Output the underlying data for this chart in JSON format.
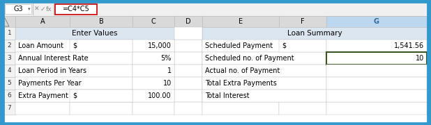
{
  "title_bar_text": "G3",
  "formula_text": "=C4*C5",
  "section1_header": "Enter Values",
  "section2_header": "Loan Summary",
  "left_rows": [
    {
      "label": "Loan Amount",
      "col_b_prefix": "$",
      "value": "15,000"
    },
    {
      "label": "Annual Interest Rate",
      "col_b_prefix": "",
      "value": "5%"
    },
    {
      "label": "Loan Period in Years",
      "col_b_prefix": "",
      "value": "1"
    },
    {
      "label": "Payments Per Year",
      "col_b_prefix": "",
      "value": "10"
    },
    {
      "label": "Extra Payment",
      "col_b_prefix": "$",
      "value": "100.00"
    }
  ],
  "right_rows": [
    {
      "label": "Scheduled Payment",
      "col_f_prefix": "$",
      "value": "1,541.56",
      "highlighted": false
    },
    {
      "label": "Scheduled no. of Payment",
      "col_f_prefix": "",
      "value": "10",
      "highlighted": true
    },
    {
      "label": "Actual no. of Payment",
      "col_f_prefix": "",
      "value": "",
      "highlighted": false
    },
    {
      "label": "Total Extra Payments",
      "col_f_prefix": "",
      "value": "",
      "highlighted": false
    },
    {
      "label": "Total Interest",
      "col_f_prefix": "",
      "value": "",
      "highlighted": false
    }
  ],
  "section_header_bg": "#dce6f1",
  "col_header_bg": "#d9d9d9",
  "row_num_bg": "#f2f2f2",
  "grid_color": "#bfbfbf",
  "border_outer": "#3399cc",
  "highlight_cell_border": "#375623",
  "title_bar_bg": "#f0f0f0",
  "formula_box_border": "#cc0000",
  "g_col_header_bg": "#bdd7ee",
  "alt_row_bg": "#f2f2f2",
  "white": "#ffffff",
  "font_size": 7.0
}
